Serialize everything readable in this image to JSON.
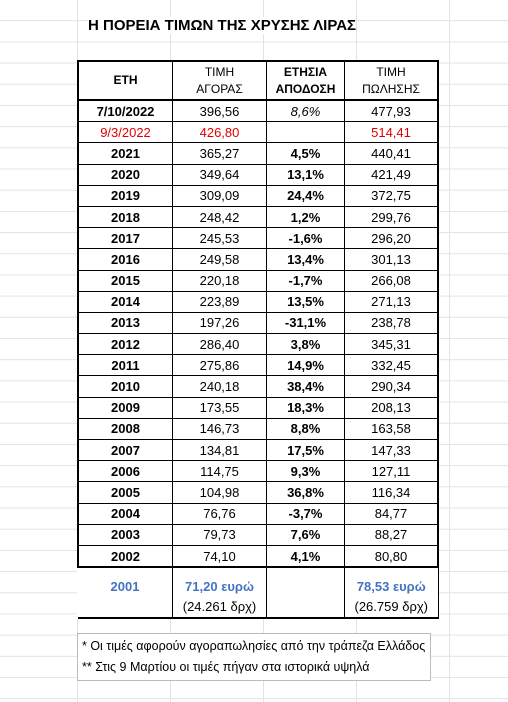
{
  "title": "Η ΠΟΡΕΙΑ ΤΙΜΩΝ ΤΗΣ ΧΡΥΣΗΣ ΛΙΡΑΣ",
  "table": {
    "header": [
      [
        "ΕΤΗ"
      ],
      [
        "ΤΙΜΗ",
        "ΑΓΟΡΑΣ"
      ],
      [
        "ΕΤΗΣΙΑ",
        "ΑΠΟΔΟΣΗ"
      ],
      [
        "ΤΙΜΗ",
        "ΠΩΛΗΣΗΣ"
      ]
    ],
    "rows": [
      [
        "7/10/2022",
        "396,56",
        "8,6%",
        "477,93"
      ],
      [
        "9/3/2022",
        "426,80",
        null,
        "514,41"
      ],
      [
        "2021",
        "365,27",
        "4,5%",
        "440,41"
      ],
      [
        "2020",
        "349,64",
        "13,1%",
        "421,49"
      ],
      [
        "2019",
        "309,09",
        "24,4%",
        "372,75"
      ],
      [
        "2018",
        "248,42",
        "1,2%",
        "299,76"
      ],
      [
        "2017",
        "245,53",
        "-1,6%",
        "296,20"
      ],
      [
        "2016",
        "249,58",
        "13,4%",
        "301,13"
      ],
      [
        "2015",
        "220,18",
        "-1,7%",
        "266,08"
      ],
      [
        "2014",
        "223,89",
        "13,5%",
        "271,13"
      ],
      [
        "2013",
        "197,26",
        "-31,1%",
        "238,78"
      ],
      [
        "2012",
        "286,40",
        "3,8%",
        "345,31"
      ],
      [
        "2011",
        "275,86",
        "14,9%",
        "332,45"
      ],
      [
        "2010",
        "240,18",
        "38,4%",
        "290,34"
      ],
      [
        "2009",
        "173,55",
        "18,3%",
        "208,13"
      ],
      [
        "2008",
        "146,73",
        "8,8%",
        "163,58"
      ],
      [
        "2007",
        "134,81",
        "17,5%",
        "147,33"
      ],
      [
        "2006",
        "114,75",
        "9,3%",
        "127,11"
      ],
      [
        "2005",
        "104,98",
        "36,8%",
        "116,34"
      ],
      [
        "2004",
        "76,76",
        "-3,7%",
        "84,77"
      ],
      [
        "2003",
        "79,73",
        "7,6%",
        "88,27"
      ],
      [
        "2002",
        "74,10",
        "4,1%",
        "80,80"
      ]
    ],
    "footer": [
      [
        "2001",
        "71,20 ευρώ",
        null,
        "78,53 ευρώ"
      ],
      [
        null,
        "(24.261 δρχ)",
        null,
        "(26.759 δρχ)"
      ]
    ]
  },
  "notes": [
    "* Οι τιμές αφορούν αγοραπωλησίες από την τράπεζα Ελλάδος",
    "** Στις 9 Μαρτίου  οι τιμές πήγαν στα ιστορικά υψηλά"
  ]
}
